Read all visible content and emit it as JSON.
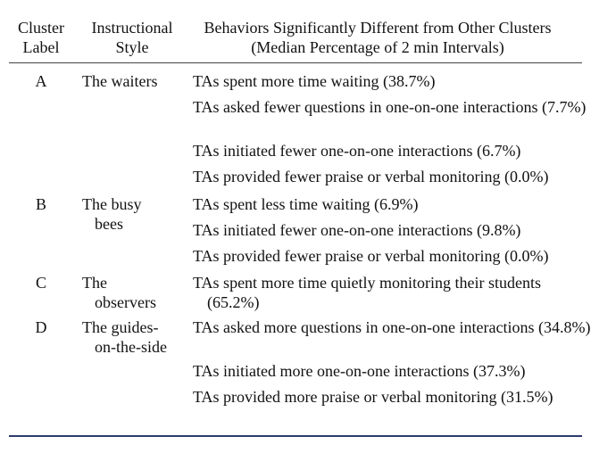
{
  "headers": {
    "col1_line1": "Cluster",
    "col1_line2": "Label",
    "col2_line1": "Instructional",
    "col2_line2": "Style",
    "col3_line1": "Behaviors Significantly Different from Other Clusters",
    "col3_line2": "(Median Percentage of 2 min Intervals)"
  },
  "clusters": [
    {
      "label": "A",
      "style_line1": "The waiters",
      "style_line2": "",
      "behaviors": [
        "TAs spent more time waiting (38.7%)",
        "TAs asked fewer questions in one-on-one interactions (7.7%)",
        "TAs initiated fewer one-on-one interactions (6.7%)",
        "TAs provided fewer praise or verbal monitoring (0.0%)"
      ]
    },
    {
      "label": "B",
      "style_line1": "The busy",
      "style_line2": "bees",
      "behaviors": [
        "TAs spent less time waiting (6.9%)",
        "TAs initiated fewer one-on-one interactions (9.8%)",
        "TAs provided fewer praise or verbal monitoring (0.0%)"
      ]
    },
    {
      "label": "C",
      "style_line1": "The",
      "style_line2": "observers",
      "behaviors": [
        "TAs spent more time quietly monitoring their students (65.2%)"
      ]
    },
    {
      "label": "D",
      "style_line1": "The guides-",
      "style_line2": "on-the-side",
      "behaviors": [
        "TAs asked more questions in one-on-one interactions (34.8%)",
        "TAs initiated more one-on-one interactions (37.3%)",
        "TAs provided more praise or verbal monitoring (31.5%)"
      ]
    }
  ]
}
